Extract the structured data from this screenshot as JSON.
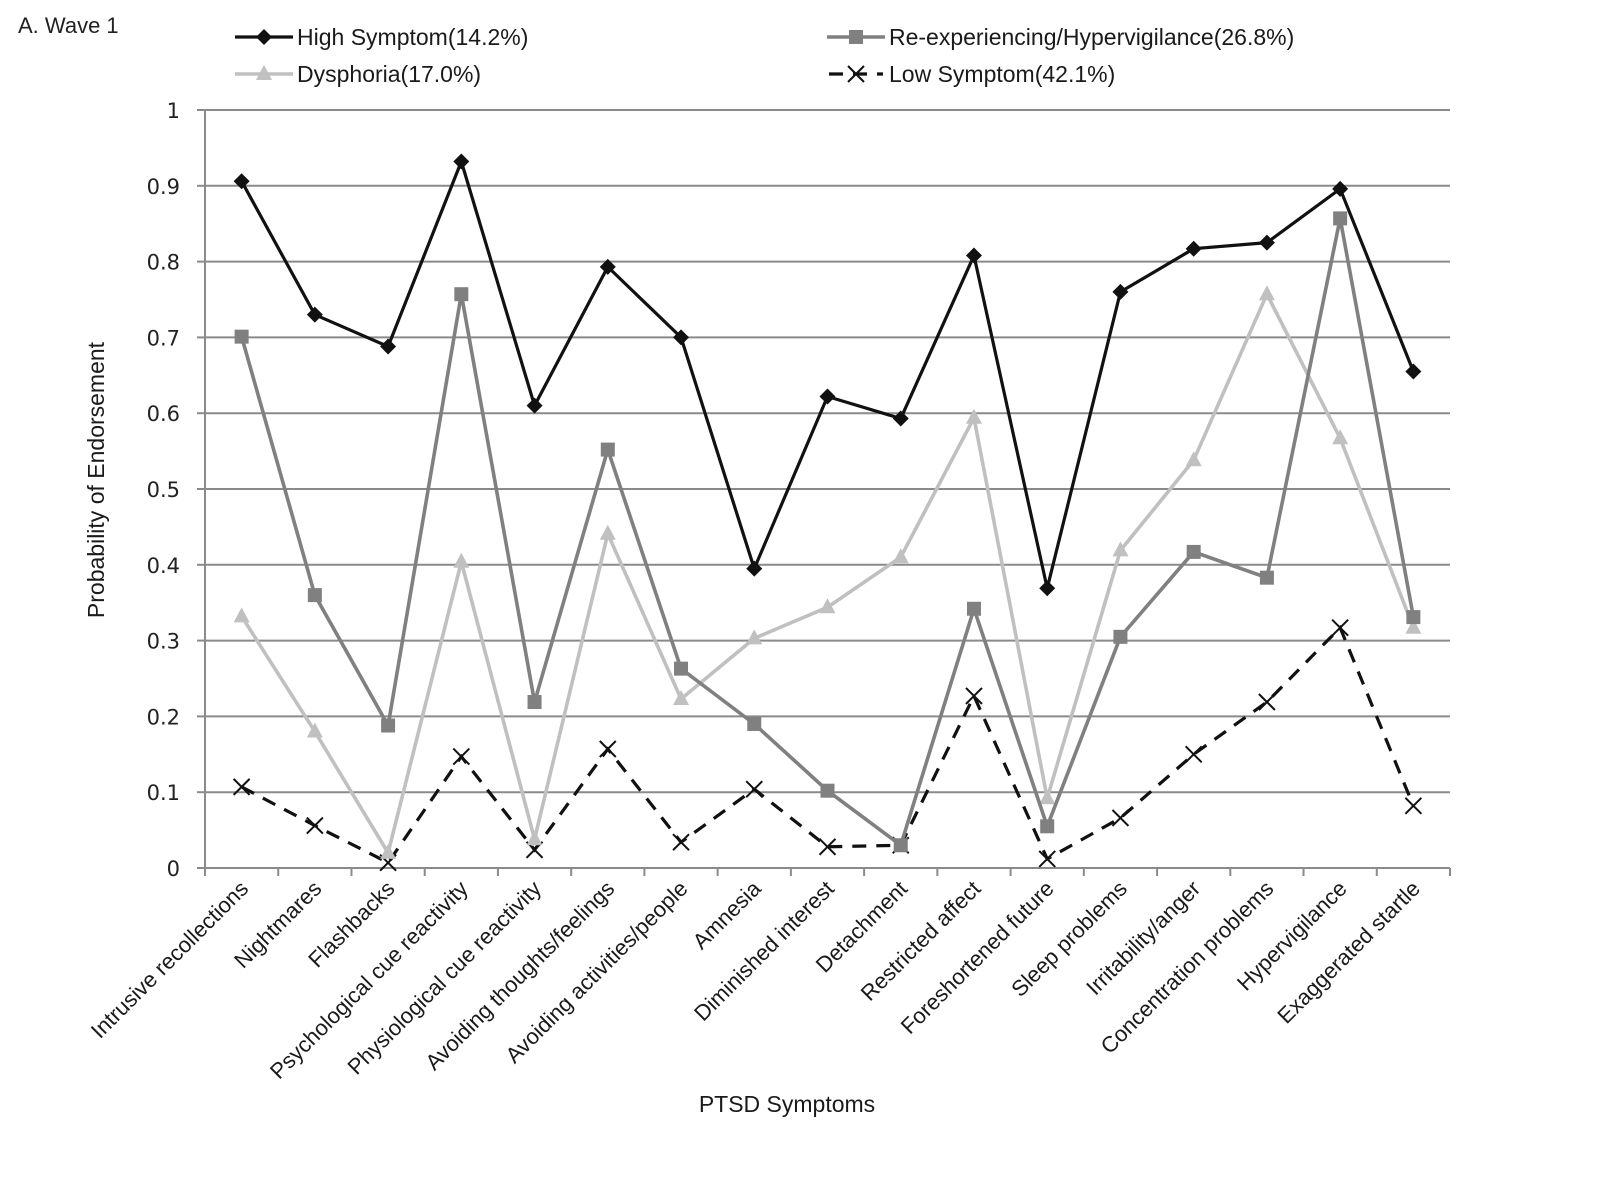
{
  "panel_label": "A. Wave 1",
  "chart_data": {
    "type": "line",
    "title": "A. Wave 1",
    "xlabel": "PTSD Symptoms",
    "ylabel": "Probability of Endorsement",
    "ylim": [
      0,
      1
    ],
    "yticks": [
      "0",
      "0.1",
      "0.2",
      "0.3",
      "0.4",
      "0.5",
      "0.6",
      "0.7",
      "0.8",
      "0.9",
      "1"
    ],
    "ytick_values": [
      0,
      0.1,
      0.2,
      0.3,
      0.4,
      0.5,
      0.6,
      0.7,
      0.8,
      0.9,
      1
    ],
    "grid": "horizontal",
    "legend_position": "top",
    "categories": [
      "Intrusive recollections",
      "Nightmares",
      "Flashbacks",
      "Psychological cue reactivity",
      "Physiological cue reactivity",
      "Avoiding thoughts/feelings",
      "Avoiding activities/people",
      "Amnesia",
      "Diminished interest",
      "Detachment",
      "Restricted affect",
      "Foreshortened future",
      "Sleep problems",
      "Irritability/anger",
      "Concentration problems",
      "Hypervigilance",
      "Exaggerated startle"
    ],
    "series": [
      {
        "name": "High Symptom(14.2%)",
        "color": "#111111",
        "marker": "diamond",
        "dash": "solid",
        "values": [
          0.906,
          0.73,
          0.688,
          0.932,
          0.61,
          0.793,
          0.7,
          0.395,
          0.622,
          0.593,
          0.808,
          0.369,
          0.76,
          0.817,
          0.825,
          0.896,
          0.655
        ]
      },
      {
        "name": "Re-experiencing/Hypervigilance(26.8%)",
        "color": "#808080",
        "marker": "square",
        "dash": "solid",
        "values": [
          0.701,
          0.36,
          0.188,
          0.757,
          0.219,
          0.552,
          0.263,
          0.19,
          0.102,
          0.03,
          0.342,
          0.055,
          0.305,
          0.417,
          0.383,
          0.857,
          0.331
        ]
      },
      {
        "name": "Dysphoria(17.0%)",
        "color": "#c0c0c0",
        "marker": "triangle",
        "dash": "solid",
        "values": [
          0.332,
          0.18,
          0.02,
          0.404,
          0.038,
          0.441,
          0.223,
          0.303,
          0.344,
          0.41,
          0.594,
          0.092,
          0.419,
          0.538,
          0.757,
          0.567,
          0.317
        ]
      },
      {
        "name": "Low Symptom(42.1%)",
        "color": "#111111",
        "marker": "x",
        "dash": "dashed",
        "values": [
          0.107,
          0.056,
          0.007,
          0.147,
          0.024,
          0.157,
          0.034,
          0.104,
          0.028,
          0.03,
          0.227,
          0.012,
          0.066,
          0.15,
          0.219,
          0.317,
          0.082
        ]
      }
    ]
  }
}
